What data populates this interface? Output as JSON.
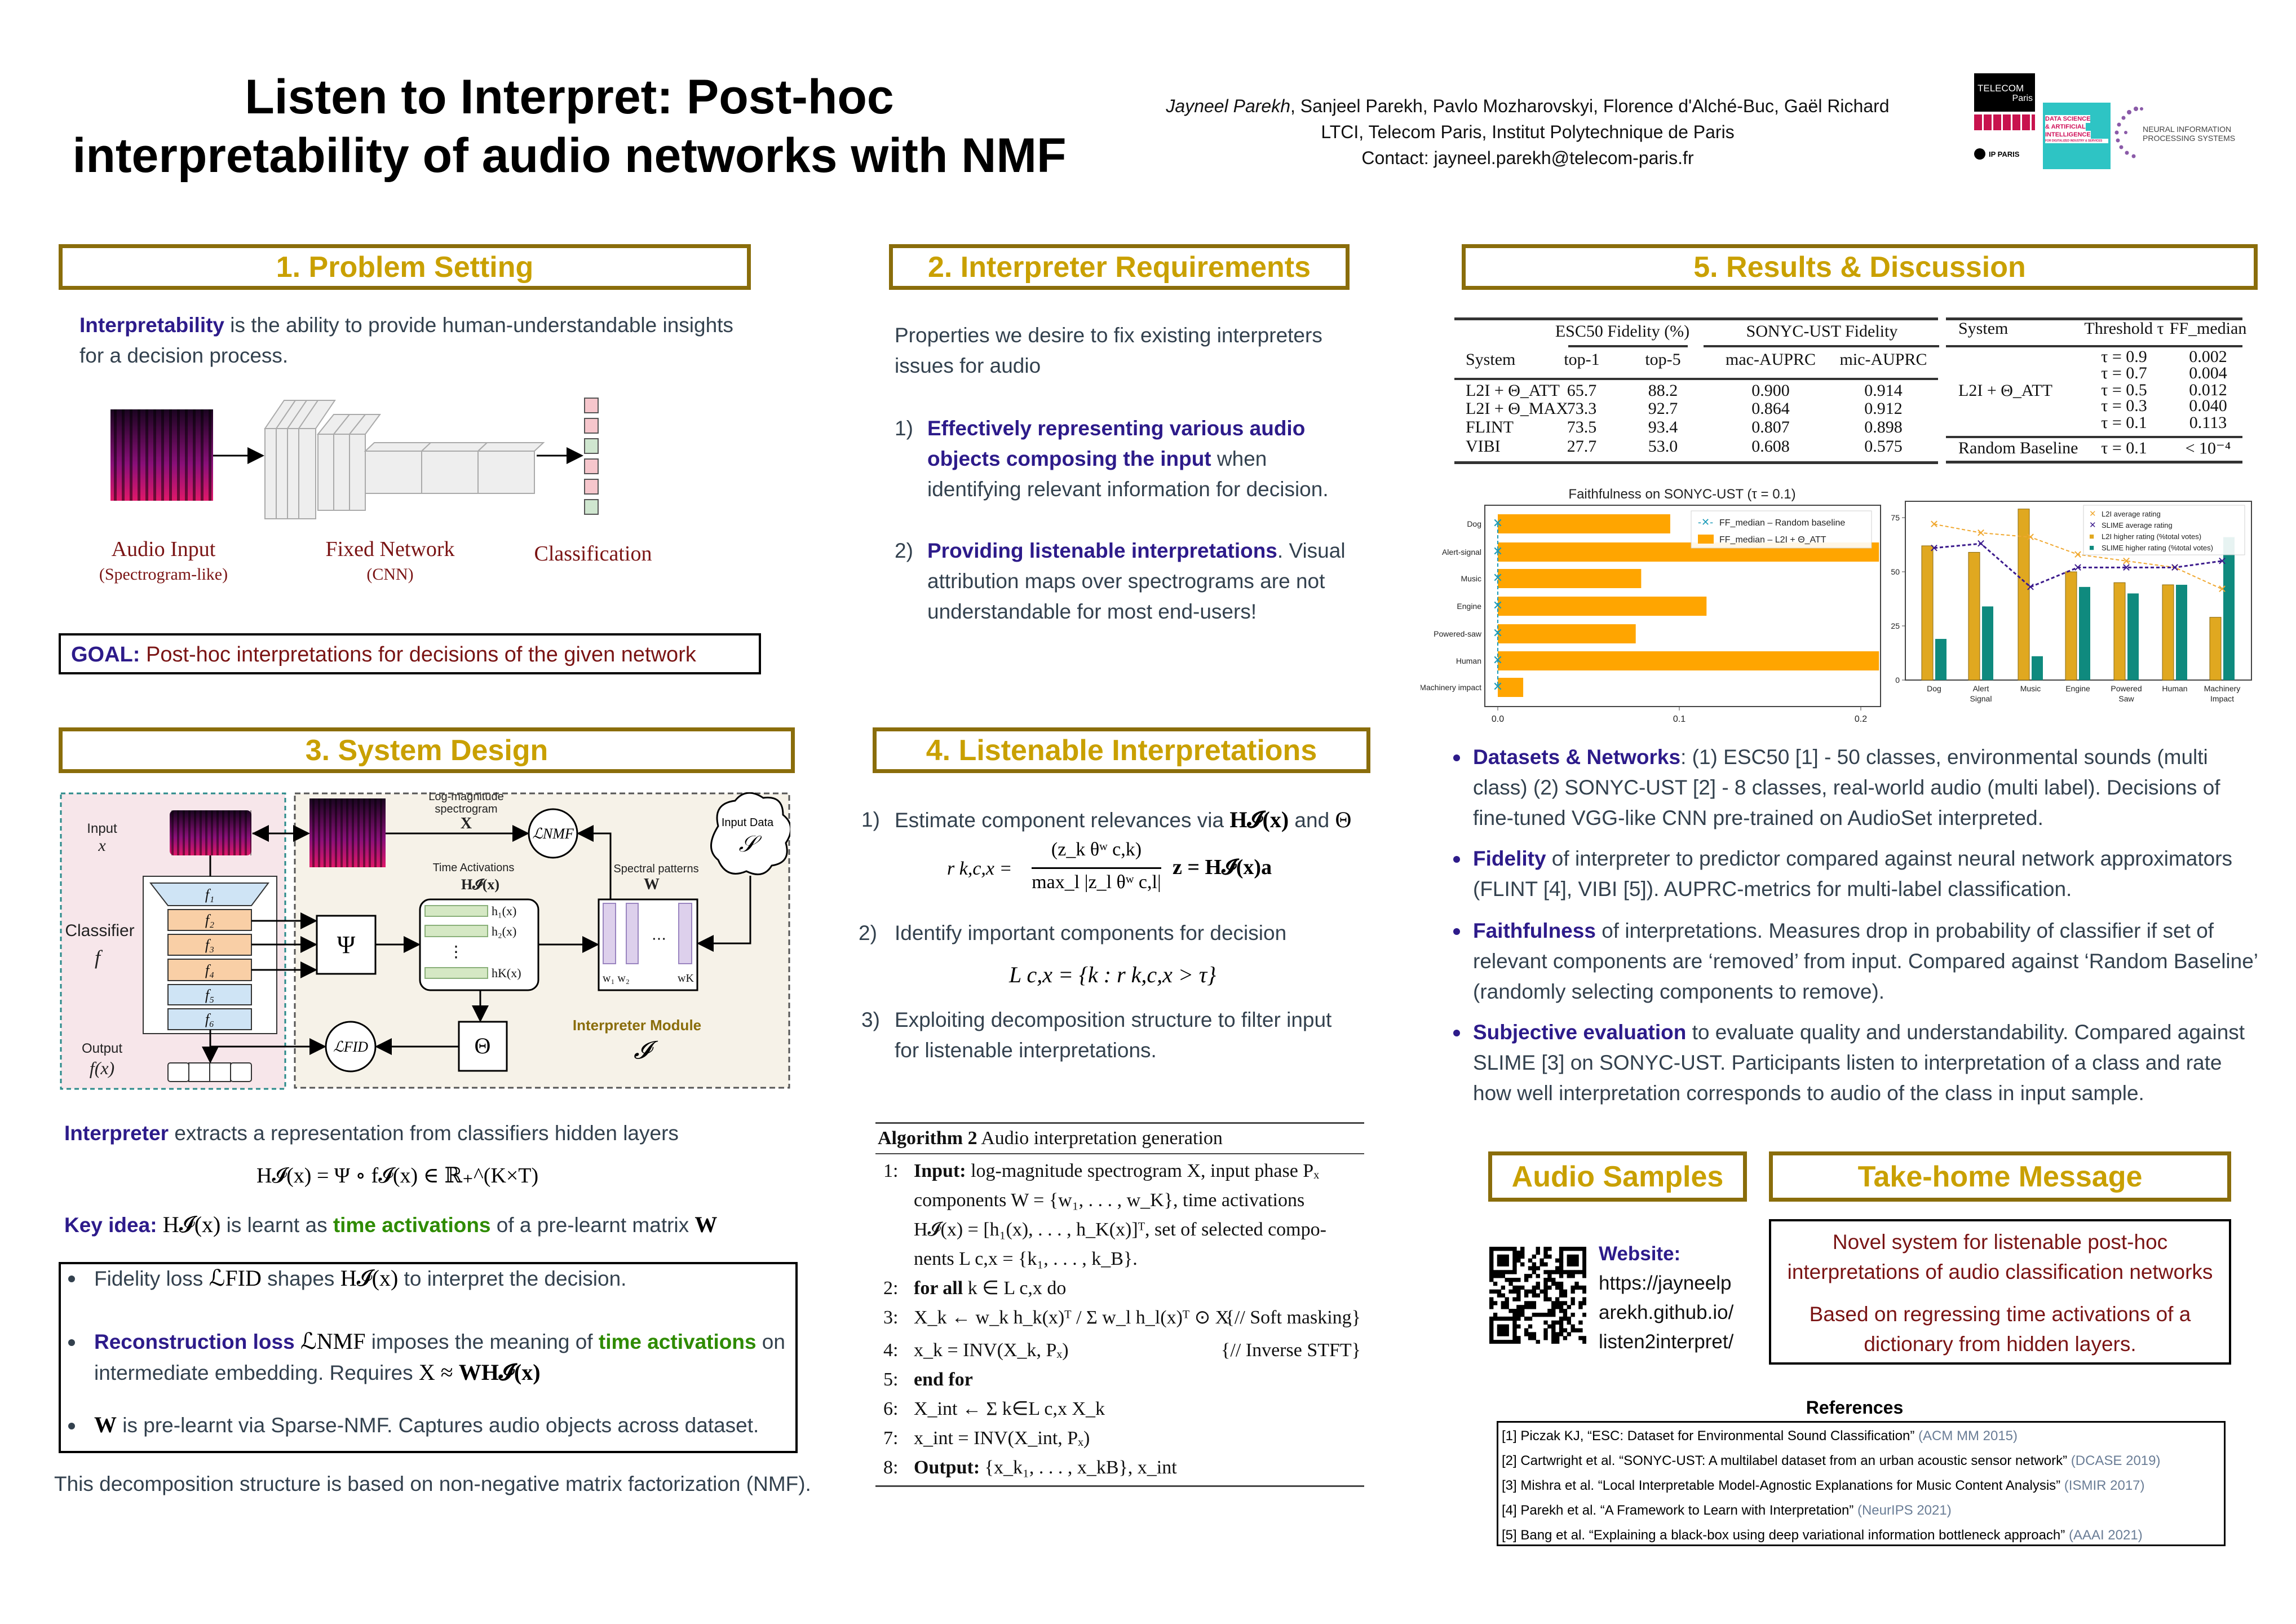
{
  "header": {
    "title_line1": "Listen to Interpret: Post-hoc",
    "title_line2": "interpretability of audio networks with NMF",
    "first_author": "Jayneel Parekh",
    "other_authors": ", Sanjeel Parekh, Pavlo Mozharovskyi, Florence d'Alché-Buc, Gaël Richard",
    "affiliation": "LTCI, Telecom Paris, Institut Polytechnique de Paris",
    "contact": "Contact: jayneel.parekh@telecom-paris.fr",
    "logos": {
      "telecom": "TELECOM",
      "paris": "Paris",
      "ipparis": "IP PARIS",
      "dsai": [
        "DATA SCIENCE",
        "& ARTIFICIAL",
        "INTELLIGENCE",
        "FOR DIGITALIZED INDUSTRY & SERVICES"
      ],
      "neurips": [
        "NEURAL INFORMATION",
        "PROCESSING SYSTEMS"
      ]
    }
  },
  "colors": {
    "heading_border": "#8a6d0b",
    "heading_text": "#c9a000",
    "keyword_blue": "#2d1b8a",
    "keyword_green": "#2e8b00",
    "dark_red": "#7a1414",
    "bar_orange": "#ffa500",
    "l2i_gold": "#e0a820",
    "slime_teal": "#0f8a7e",
    "slime_line": "#3b1a8c"
  },
  "s1": {
    "heading": "1.  Problem Setting",
    "intro_bold": "Interpretability",
    "intro_rest": " is the ability to provide human-understandable insights for a decision process.",
    "diagram": {
      "audio_input": "Audio Input",
      "audio_sub": "(Spectrogram-like)",
      "network": "Fixed Network",
      "network_sub": "(CNN)",
      "classification": "Classification"
    },
    "goal_label": "GOAL:",
    "goal_text": " Post-hoc interpretations for decisions of the given network"
  },
  "s2": {
    "heading": "2. Interpreter Requirements",
    "intro": "Properties we desire to fix existing interpreters issues for audio",
    "items": [
      {
        "num": "1)",
        "bold": "Effectively representing various audio objects composing the input",
        "rest": " when identifying relevant information for decision."
      },
      {
        "num": "2)",
        "bold": "Providing listenable interpretations",
        "rest": ". Visual attribution maps over spectrograms are not understandable for most end-users!"
      }
    ]
  },
  "s3": {
    "heading": "3. System Design",
    "diagram": {
      "input": "Input",
      "input_var": "x",
      "classifier": "Classifier",
      "classifier_var": "f",
      "output": "Output",
      "output_var": "f(x)",
      "layers": [
        "f₁",
        "f₂",
        "f₃",
        "f₄",
        "f₅",
        "f₆"
      ],
      "log_mag": "Log-magnitude",
      "spectrogram": "spectrogram",
      "X": "X",
      "l_nmf": "ℒNMF",
      "input_data": "Input Data",
      "S": "𝒮",
      "time_act": "Time Activations",
      "H": "H𝓘(x)",
      "spectral": "Spectral patterns",
      "W": "W",
      "psi": "Ψ",
      "h_labels": [
        "h₁(x)",
        "h₂(x)",
        "hK(x)"
      ],
      "w_labels": [
        "w₁ w₂",
        "wK"
      ],
      "theta": "Θ",
      "l_fid": "ℒFID",
      "module": "Interpreter Module",
      "module_var": "𝓘"
    },
    "interp_bold": "Interpreter",
    "interp_rest": " extracts a representation from classifiers hidden layers",
    "eq": "H𝓘(x) = Ψ ∘ f𝓘(x) ∈ ℝ₊^(K×T)",
    "key_label": "Key idea:",
    "key_math": "H𝓘(x)",
    "key_mid": " is learnt as ",
    "key_green": "time activations",
    "key_end": " of a pre-learnt matrix ",
    "key_W": "W",
    "b1_a": "Fidelity loss ",
    "b1_m1": "ℒFID",
    "b1_b": " shapes ",
    "b1_m2": "H𝓘(x)",
    "b1_c": " to interpret the decision.",
    "b2_a": "Reconstruction loss ",
    "b2_m1": "ℒNMF",
    "b2_b": " imposes the meaning of ",
    "b2_g": "time activations",
    "b2_c": " on intermediate embedding. Requires ",
    "b2_m2": "X ≈ ",
    "b2_m3": "WH𝓘(x)",
    "b3_m": "W",
    "b3_rest": " is pre-learnt via Sparse-NMF. Captures audio objects across dataset.",
    "footer": "This decomposition structure is based on non-negative matrix factorization (NMF)."
  },
  "s4": {
    "heading": "4. Listenable Interpretations",
    "i1_num": "1)",
    "i1": "Estimate component relevances via ",
    "i1_m": "H𝓘(x)",
    "i1_and": " and ",
    "i1_theta": "Θ",
    "eq1_lhs": "r k,c,x =",
    "eq1_num": "(z_k θʷ c,k)",
    "eq1_den": "max_l |z_l θʷ c,l|",
    "eq1_z": "z = H𝓘(x)a",
    "i2_num": "2)",
    "i2": "Identify important components for decision",
    "eq2": "L c,x = {k : r k,c,x > τ}",
    "i3_num": "3)",
    "i3": "Exploiting decomposition structure to filter input for listenable interpretations.",
    "algo": {
      "title_bold": "Algorithm 2",
      "title": " Audio interpretation generation",
      "lines": [
        {
          "n": "1:",
          "kw": "Input:",
          "t": " log-magnitude spectrogram X, input phase Pₓ"
        },
        {
          "n": "",
          "kw": "",
          "t": "components W = {w₁, . . . , w_K}, time activations"
        },
        {
          "n": "",
          "kw": "",
          "t": "H𝓘(x) = [h₁(x), . . . , h_K(x)]ᵀ, set of selected compo-"
        },
        {
          "n": "",
          "kw": "",
          "t": "nents L c,x = {k₁, . . . , k_B}."
        },
        {
          "n": "2:",
          "kw": "for all",
          "t": " k ∈ L c,x  do"
        },
        {
          "n": "3:",
          "kw": "",
          "t": "    X_k ← w_k h_k(x)ᵀ / Σ w_l h_l(x)ᵀ ⊙ X",
          "c": "{// Soft masking}"
        },
        {
          "n": "4:",
          "kw": "",
          "t": "    x_k = INV(X_k, Pₓ)",
          "c": "{// Inverse STFT}"
        },
        {
          "n": "5:",
          "kw": "end for",
          "t": ""
        },
        {
          "n": "6:",
          "kw": "",
          "t": "X_int ← Σ k∈L c,x  X_k"
        },
        {
          "n": "7:",
          "kw": "",
          "t": "x_int = INV(X_int, Pₓ)"
        },
        {
          "n": "8:",
          "kw": "Output:",
          "t": " {x_k₁, . . . , x_kB}, x_int"
        }
      ]
    }
  },
  "s5": {
    "heading": "5. Results & Discussion",
    "table1": {
      "group1": "ESC50 Fidelity (%)",
      "group2": "SONYC-UST Fidelity",
      "headers": [
        "System",
        "top-1",
        "top-5",
        "mac-AUPRC",
        "mic-AUPRC"
      ],
      "rows": [
        [
          "L2I + Θ_ATT",
          "65.7",
          "88.2",
          "0.900",
          "0.914"
        ],
        [
          "L2I + Θ_MAX",
          "73.3",
          "92.7",
          "0.864",
          "0.912"
        ],
        [
          "FLINT",
          "73.5",
          "93.4",
          "0.807",
          "0.898"
        ],
        [
          "VIBI",
          "27.7",
          "53.0",
          "0.608",
          "0.575"
        ]
      ]
    },
    "table2": {
      "headers": [
        "System",
        "Threshold τ",
        "FF_median"
      ],
      "system": "L2I + Θ_ATT",
      "rows": [
        [
          "τ = 0.9",
          "0.002"
        ],
        [
          "τ = 0.7",
          "0.004"
        ],
        [
          "τ = 0.5",
          "0.012"
        ],
        [
          "τ = 0.3",
          "0.040"
        ],
        [
          "τ = 0.1",
          "0.113"
        ]
      ],
      "baseline": [
        "Random Baseline",
        "τ = 0.1",
        "< 10⁻⁴"
      ]
    },
    "bullets": [
      {
        "bold": "Datasets & Networks",
        "rest": ": (1) ESC50 [1] - 50 classes, environmental sounds (multi class) (2) SONYC-UST [2] - 8 classes, real-world audio (multi label). Decisions of fine-tuned VGG-like CNN pre-trained on AudioSet interpreted."
      },
      {
        "bold": "Fidelity",
        "rest": " of interpreter to predictor compared against neural network approximators (FLINT [4], VIBI [5]). AUPRC-metrics for multi-label classification."
      },
      {
        "bold": "Faithfulness",
        "rest": " of interpretations. Measures drop in probability of classifier if set of relevant components are ‘removed’ from input. Compared against ‘Random Baseline’ (randomly selecting components to remove)."
      },
      {
        "bold": "Subjective evaluation",
        "rest": " to evaluate quality and understandability. Compared against SLIME [3] on SONYC-UST. Participants listen to interpretation of a class and rate how well interpretation corresponds to audio of the class in input sample."
      }
    ]
  },
  "chart_data": [
    {
      "type": "bar",
      "orientation": "horizontal",
      "title": "Faithfulness on SONYC-UST (τ = 0.1)",
      "categories": [
        "Dog",
        "Alert-signal",
        "Music",
        "Engine",
        "Powered-saw",
        "Human",
        "Machinery impact"
      ],
      "series": [
        {
          "name": "FF_median – Random baseline",
          "style": "dashed line with x markers",
          "values": [
            0,
            0,
            0,
            0,
            0,
            0,
            0
          ]
        },
        {
          "name": "FF_median – L2I + Θ_ATT",
          "values": [
            0.095,
            0.21,
            0.079,
            0.115,
            0.076,
            0.21,
            0.014
          ]
        }
      ],
      "xlim": [
        -0.007,
        0.21
      ],
      "xticks": [
        "0.0",
        "0.1",
        "0.2"
      ],
      "legend": "top-right",
      "grid": false
    },
    {
      "type": "bar+line",
      "categories": [
        "Dog",
        "Alert Signal",
        "Music",
        "Engine",
        "Powered Saw",
        "Human",
        "Machinery Impact"
      ],
      "series": [
        {
          "name": "L2I average rating",
          "type": "line",
          "values": [
            72,
            68,
            66,
            58,
            55,
            52,
            42
          ]
        },
        {
          "name": "SLIME average rating",
          "type": "line",
          "values": [
            61,
            63,
            43,
            52,
            52,
            52,
            55
          ]
        },
        {
          "name": "L2I higher rating (%total votes)",
          "type": "bar",
          "values": [
            62,
            59,
            79,
            50,
            45,
            44,
            29
          ]
        },
        {
          "name": "SLIME higher rating (%total votes)",
          "type": "bar",
          "values": [
            19,
            34,
            11,
            43,
            40,
            44,
            66
          ]
        }
      ],
      "ylim": [
        0,
        82
      ],
      "yticks": [
        "0",
        "25",
        "50",
        "75"
      ],
      "legend": "top-right",
      "grid": false
    }
  ],
  "audio": {
    "heading": "Audio Samples",
    "website_label": "Website:",
    "url_lines": [
      "https://jayneelp",
      "arekh.github.io/",
      "listen2interpret/"
    ]
  },
  "takehome": {
    "heading": "Take-home Message",
    "p1": "Novel system for listenable post-hoc interpretations of audio classification networks",
    "p2": "Based on regressing time activations of a dictionary from hidden layers."
  },
  "references": {
    "heading": "References",
    "items": [
      {
        "text": "[1] Piczak KJ, “ESC: Dataset for Environmental Sound Classification”",
        "venue": " (ACM MM 2015)"
      },
      {
        "text": "[2] Cartwright et al. “SONYC-UST: A multilabel dataset from an urban acoustic sensor network”",
        "venue": "  (DCASE 2019)"
      },
      {
        "text": "[3] Mishra et al. “Local Interpretable Model-Agnostic Explanations for Music Content Analysis”",
        "venue": "  (ISMIR 2017)"
      },
      {
        "text": "[4] Parekh et al. “A Framework to Learn with Interpretation”",
        "venue": "  (NeurIPS 2021)"
      },
      {
        "text": "[5] Bang et al. “Explaining a black-box using deep variational information bottleneck approach”",
        "venue": " (AAAI 2021)"
      }
    ]
  }
}
